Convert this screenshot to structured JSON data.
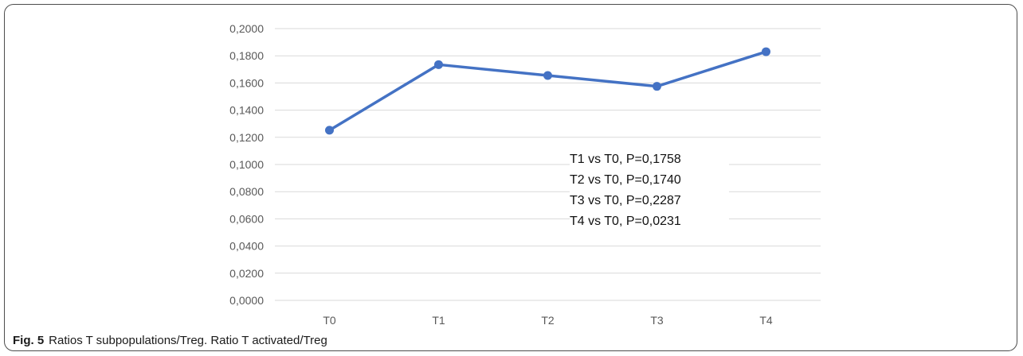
{
  "chart_data": {
    "type": "line",
    "categories": [
      "T0",
      "T1",
      "T2",
      "T3",
      "T4"
    ],
    "series": [
      {
        "values": [
          0.1252,
          0.1735,
          0.1655,
          0.1575,
          0.183
        ]
      }
    ],
    "ylim": [
      0,
      0.2
    ],
    "y_ticks": [
      "0,0000",
      "0,0200",
      "0,0400",
      "0,0600",
      "0,0800",
      "0,1000",
      "0,1200",
      "0,1400",
      "0,1600",
      "0,1800",
      "0,2000"
    ],
    "grid": true,
    "line_color": "#4472c4",
    "annotations": [
      "T1 vs T0, P=0,1758",
      "T2 vs T0, P=0,1740",
      "T3 vs T0, P=0,2287",
      "T4 vs T0, P=0,0231"
    ]
  },
  "caption": {
    "label": "Fig. 5",
    "text": "Ratios T subpopulations/Treg. Ratio T activated/Treg"
  }
}
